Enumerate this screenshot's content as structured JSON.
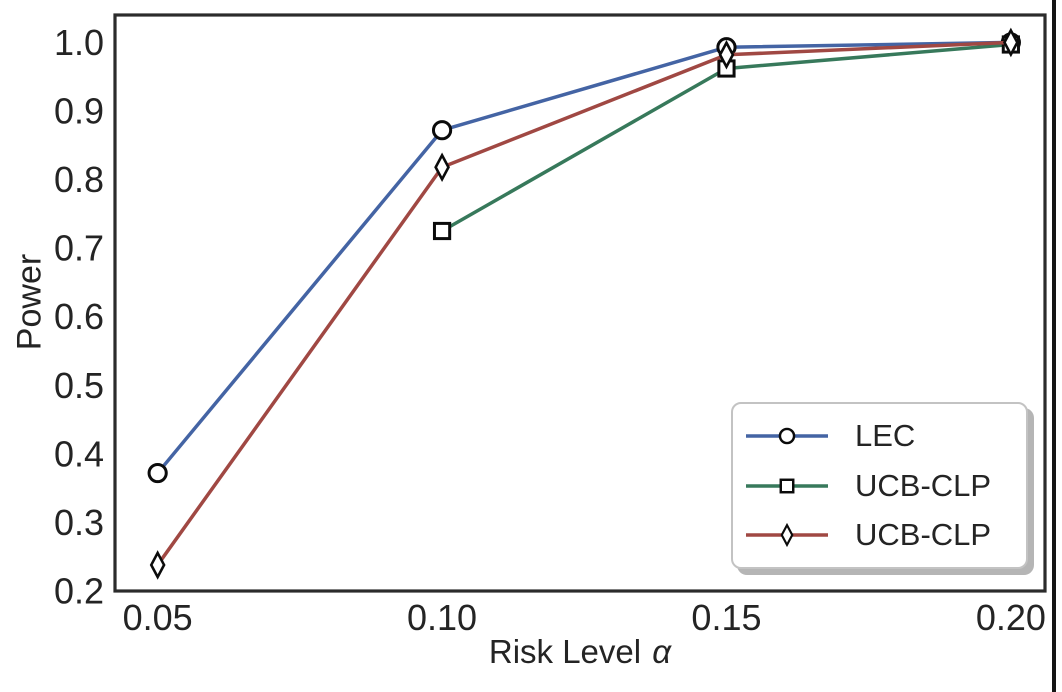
{
  "figure": {
    "background": "#ffffff",
    "axis_color": "#2b2b2b",
    "text_color": "#242424",
    "marker_edge_color": "#0b0b0b",
    "marker_fill": "#ffffff",
    "legend_border_color": "#c3c3c3",
    "legend_shadow_color": "#b5b5b5",
    "page_edge_color": "#151515"
  },
  "chart_data": {
    "type": "line",
    "title": "",
    "xlabel": "Risk Level α",
    "xlabel_text": "Risk Level",
    "xlabel_symbol": "α",
    "ylabel": "Power",
    "xlim": [
      0.0425,
      0.206
    ],
    "ylim": [
      0.2,
      1.04
    ],
    "xticks": [
      "0.05",
      "0.10",
      "0.15",
      "0.20"
    ],
    "xtick_values": [
      0.05,
      0.1,
      0.15,
      0.2
    ],
    "yticks": [
      "0.2",
      "0.3",
      "0.4",
      "0.5",
      "0.6",
      "0.7",
      "0.8",
      "0.9",
      "1.0"
    ],
    "ytick_values": [
      0.2,
      0.3,
      0.4,
      0.5,
      0.6,
      0.7,
      0.8,
      0.9,
      1.0
    ],
    "grid": false,
    "legend_position": "lower right",
    "series": [
      {
        "name": "LEC",
        "color": "#4464A4",
        "marker": "circle",
        "x": [
          0.05,
          0.1,
          0.15,
          0.2
        ],
        "y": [
          0.372,
          0.872,
          0.993,
          1.0
        ]
      },
      {
        "name": "UCB-CLP",
        "color": "#37795B",
        "marker": "square",
        "x": [
          0.1,
          0.15,
          0.2
        ],
        "y": [
          0.725,
          0.962,
          0.997
        ]
      },
      {
        "name": "UCB-CLP",
        "color": "#A04843",
        "marker": "thin-diamond",
        "x": [
          0.05,
          0.1,
          0.15,
          0.2
        ],
        "y": [
          0.238,
          0.818,
          0.982,
          1.0
        ]
      }
    ]
  }
}
